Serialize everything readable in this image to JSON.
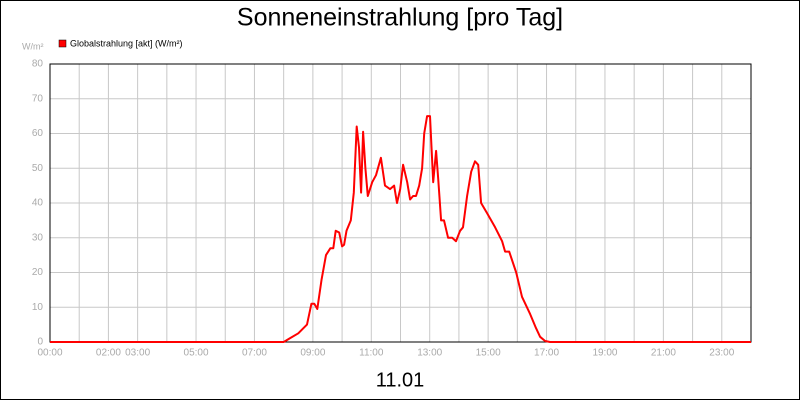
{
  "chart_data": {
    "type": "line",
    "title": "Sonneneinstrahlung [pro Tag]",
    "y_label": "W/m²",
    "x_label": "11.01",
    "xlim": [
      0,
      24
    ],
    "ylim": [
      0,
      80
    ],
    "yticks": [
      0,
      10,
      20,
      30,
      40,
      50,
      60,
      70,
      80
    ],
    "xticks": [
      {
        "value": 0,
        "label": "00:00"
      },
      {
        "value": 2,
        "label": "02:00"
      },
      {
        "value": 3,
        "label": "03:00"
      },
      {
        "value": 5,
        "label": "05:00"
      },
      {
        "value": 7,
        "label": "07:00"
      },
      {
        "value": 9,
        "label": "09:00"
      },
      {
        "value": 11,
        "label": "11:00"
      },
      {
        "value": 13,
        "label": "13:00"
      },
      {
        "value": 15,
        "label": "15:00"
      },
      {
        "value": 17,
        "label": "17:00"
      },
      {
        "value": 19,
        "label": "19:00"
      },
      {
        "value": 21,
        "label": "21:00"
      },
      {
        "value": 23,
        "label": "23:00"
      }
    ],
    "xgrid": [
      1,
      4,
      6,
      8,
      10,
      12,
      14,
      16,
      18,
      20,
      22,
      24
    ],
    "grid": true,
    "x": [
      0,
      8,
      8.2,
      8.5,
      8.8,
      8.95,
      9.05,
      9.15,
      9.3,
      9.45,
      9.6,
      9.7,
      9.78,
      9.9,
      10,
      10.07,
      10.15,
      10.3,
      10.4,
      10.5,
      10.58,
      10.65,
      10.72,
      10.8,
      10.88,
      11.03,
      11.16,
      11.33,
      11.47,
      11.64,
      11.78,
      11.88,
      11.99,
      12.09,
      12.23,
      12.33,
      12.43,
      12.53,
      12.64,
      12.74,
      12.81,
      12.91,
      13.01,
      13.12,
      13.22,
      13.29,
      13.39,
      13.49,
      13.63,
      13.77,
      13.9,
      14.04,
      14.14,
      14.28,
      14.42,
      14.55,
      14.66,
      14.76,
      14.97,
      15.24,
      15.48,
      15.58,
      15.72,
      15.96,
      16.16,
      16.44,
      16.64,
      16.78,
      16.95,
      17.12,
      24
    ],
    "series": [
      {
        "name": "Globalstrahlung [akt] (W/m²)",
        "color": "#ff0000",
        "values": [
          0,
          0,
          1,
          2.5,
          5,
          11,
          11,
          9.5,
          18,
          25,
          27,
          27,
          32,
          31.5,
          27.5,
          28,
          32,
          35,
          43,
          62,
          56,
          43,
          60.5,
          50,
          42,
          46,
          48,
          53,
          45,
          44,
          45,
          40,
          44,
          51,
          46,
          41,
          42,
          42,
          45,
          50,
          60,
          65,
          65,
          46,
          55,
          47,
          35,
          35,
          30,
          30,
          29,
          32,
          33,
          42,
          49,
          52,
          51,
          40,
          37,
          33,
          29,
          26,
          26,
          20,
          13,
          8,
          4,
          1.5,
          0.3,
          0,
          0
        ]
      }
    ]
  }
}
